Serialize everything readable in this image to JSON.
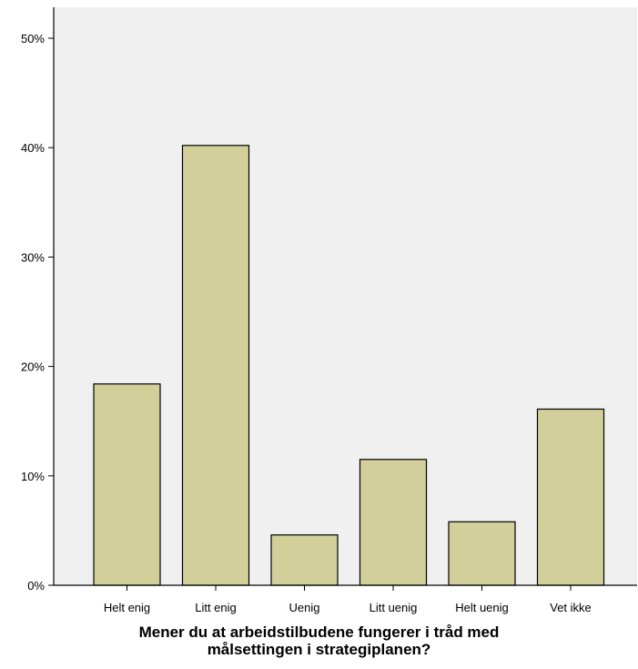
{
  "chart_data": {
    "type": "bar",
    "categories": [
      "Helt enig",
      "Litt enig",
      "Uenig",
      "Litt uenig",
      "Helt uenig",
      "Vet ikke"
    ],
    "values": [
      18.4,
      40.2,
      4.6,
      11.5,
      5.8,
      16.1
    ],
    "xlabel_lines": [
      "Mener du at arbeidstilbudene fungerer i tråd med",
      "målsettingen i strategiplanen?"
    ],
    "ylabel": "",
    "ylim": [
      0,
      50
    ],
    "yticks": [
      "0%",
      "10%",
      "20%",
      "30%",
      "40%",
      "50%"
    ],
    "ytick_values": [
      0,
      10,
      20,
      30,
      40,
      50
    ],
    "grid": false,
    "colors": {
      "bar_fill": "#d3cf9a",
      "bar_stroke": "#000000",
      "plot_background": "#f0f0f0"
    }
  }
}
